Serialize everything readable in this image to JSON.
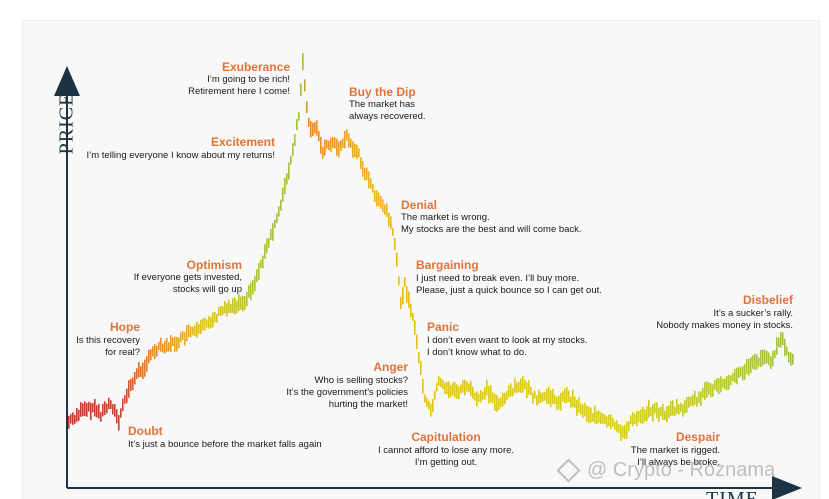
{
  "axes": {
    "y_label": "PRICE",
    "x_label": "TIME"
  },
  "stages": {
    "exuberance": {
      "title": "Exuberance",
      "lines": [
        "I’m going to be rich!",
        "Retirement here I come!"
      ]
    },
    "excitement": {
      "title": "Excitement",
      "lines": [
        "I’m telling everyone I know about my returns!"
      ]
    },
    "optimism": {
      "title": "Optimism",
      "lines": [
        "If everyone gets invested,",
        "stocks will go up"
      ]
    },
    "hope": {
      "title": "Hope",
      "lines": [
        "Is this recovery",
        "for real?"
      ]
    },
    "doubt": {
      "title": "Doubt",
      "lines": [
        "It’s just a bounce before the market falls again"
      ]
    },
    "buy_the_dip": {
      "title": "Buy the Dip",
      "lines": [
        "The market has",
        "always recovered."
      ]
    },
    "denial": {
      "title": "Denial",
      "lines": [
        "The market is wrong.",
        "My stocks are the best and will come back."
      ]
    },
    "bargaining": {
      "title": "Bargaining",
      "lines": [
        "I just need to break even. I’ll buy more.",
        "Please, just a quick bounce so I can get out."
      ]
    },
    "panic": {
      "title": "Panic",
      "lines": [
        "I don’t even want to look at my stocks.",
        "I don’t know what to do."
      ]
    },
    "anger": {
      "title": "Anger",
      "lines": [
        "Who is selling stocks?",
        "It’s the government’s policies",
        "hurting the market!"
      ]
    },
    "capitulation": {
      "title": "Capitulation",
      "lines": [
        "I cannot afford to lose any more.",
        "I’m getting out."
      ]
    },
    "despair": {
      "title": "Despair",
      "lines": [
        "The market is rigged.",
        "I’ll always be broke."
      ]
    },
    "disbelief": {
      "title": "Disbelief",
      "lines": [
        "It’s a sucker’s rally.",
        "Nobody makes money in stocks."
      ]
    }
  },
  "colors": {
    "axis": "#1c3344",
    "title": "#e0733a",
    "red": "#c0392b",
    "orange": "#e8872a",
    "yellow": "#e3c21a",
    "green": "#9ec23a"
  },
  "watermark": "@ Crypto - Roznama"
}
